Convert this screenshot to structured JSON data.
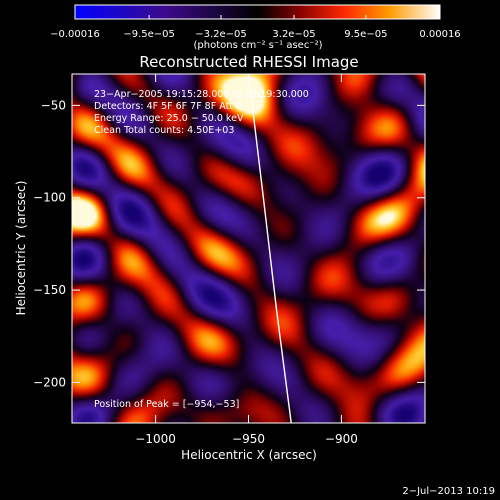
{
  "chart_data": {
    "type": "heatmap",
    "title": "Reconstructed RHESSI Image",
    "xlabel": "Heliocentric X (arcsec)",
    "ylabel": "Heliocentric Y (arcsec)",
    "xlim": [
      -1045,
      -855
    ],
    "ylim": [
      -222,
      -33
    ],
    "xticks": [
      -1000,
      -950,
      -900
    ],
    "yticks": [
      -50,
      -100,
      -150,
      -200
    ],
    "xtick_labels": [
      "−1000",
      "−950",
      "−900"
    ],
    "ytick_labels": [
      "−50",
      "−100",
      "−150",
      "−200"
    ],
    "colorbar": {
      "min": -0.00016,
      "max": 0.00016,
      "tick_values": [
        -0.00016,
        -9.5e-05,
        -3.2e-05,
        3.2e-05,
        9.5e-05,
        0.00016
      ],
      "tick_labels": [
        "−0.00016",
        "−9.5e−05",
        "−3.2e−05",
        "3.2e−05",
        "9.5e−05",
        "0.00016"
      ],
      "units": "(photons cm⁻² s⁻¹ asec⁻²)"
    },
    "annotations": [
      "23−Apr−2005 19:15:28.000 to 19:19:30.000",
      "Detectors: 4F 5F 6F 7F 8F  Att 0",
      "Energy Range: 25.0 − 50.0 keV",
      "Clean    Total counts: 4.50E+03"
    ],
    "peak_label": "Position of Peak = [−954,−53]",
    "peak": [
      -954,
      -53
    ],
    "limb_curve": [
      [
        -950,
        -33
      ],
      [
        -942,
        -100
      ],
      [
        -935,
        -160
      ],
      [
        -927,
        -222
      ]
    ],
    "footer": "2−Jul−2013 10:19"
  }
}
